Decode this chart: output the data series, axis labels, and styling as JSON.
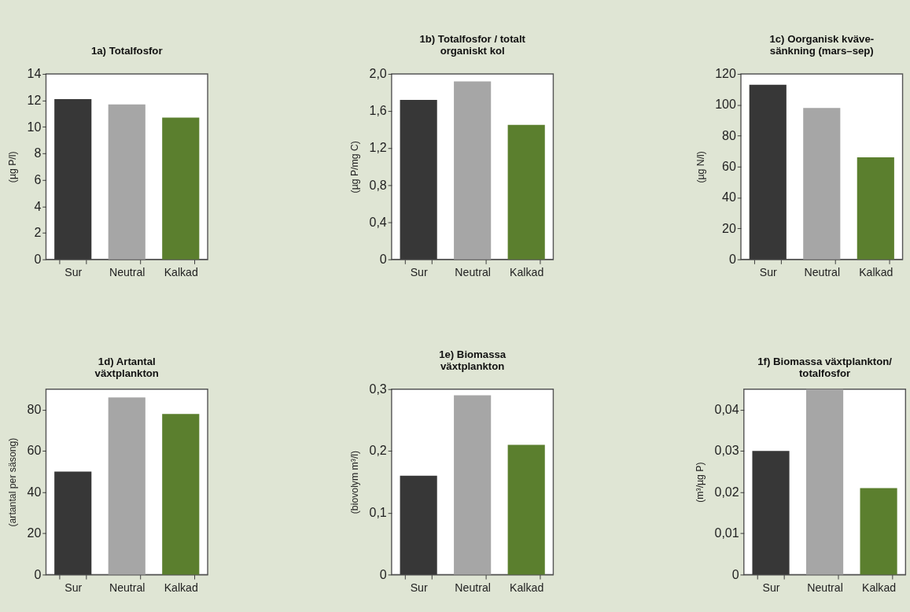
{
  "chart_data": [
    {
      "type": "bar",
      "title": "1a) Totalfosfor",
      "ylabel": "(µg P/l)",
      "categories": [
        "Sur",
        "Neutral",
        "Kalkad"
      ],
      "values": [
        12.1,
        11.7,
        10.7
      ],
      "colors": [
        "#373737",
        "#a6a6a6",
        "#5b7f2e"
      ],
      "ylim": [
        0,
        14
      ],
      "yticks": [
        0,
        2,
        4,
        6,
        8,
        10,
        12,
        14
      ],
      "grid": false
    },
    {
      "type": "bar",
      "title": "1b) Totalfosfor / totalt\norganiskt kol",
      "ylabel": "(µg P/mg C)",
      "categories": [
        "Sur",
        "Neutral",
        "Kalkad"
      ],
      "values": [
        1.72,
        1.92,
        1.45
      ],
      "colors": [
        "#373737",
        "#a6a6a6",
        "#5b7f2e"
      ],
      "ylim": [
        0,
        2.0
      ],
      "yticks": [
        0,
        {
          "value": 0.4,
          "label": "0,4"
        },
        {
          "value": 0.8,
          "label": "0,8"
        },
        {
          "value": 1.2,
          "label": "1,2"
        },
        {
          "value": 1.6,
          "label": "1,6"
        },
        {
          "value": 2.0,
          "label": "2,0"
        }
      ],
      "grid": false
    },
    {
      "type": "bar",
      "title": "1c) Oorganisk kväve-\nsänkning (mars–sep)",
      "ylabel": "(µg N/l)",
      "categories": [
        "Sur",
        "Neutral",
        "Kalkad"
      ],
      "values": [
        113,
        98,
        66
      ],
      "colors": [
        "#373737",
        "#a6a6a6",
        "#5b7f2e"
      ],
      "ylim": [
        0,
        120
      ],
      "yticks": [
        0,
        20,
        40,
        60,
        80,
        100,
        120
      ],
      "grid": false
    },
    {
      "type": "bar",
      "title": "1d) Artantal\nväxtplankton",
      "ylabel": "(artantal per säsong)",
      "categories": [
        "Sur",
        "Neutral",
        "Kalkad"
      ],
      "values": [
        50,
        86,
        78
      ],
      "colors": [
        "#373737",
        "#a6a6a6",
        "#5b7f2e"
      ],
      "ylim": [
        0,
        90
      ],
      "yticks": [
        0,
        20,
        40,
        60,
        80
      ],
      "grid": false
    },
    {
      "type": "bar",
      "title": "1e) Biomassa\nväxtplankton",
      "ylabel": "(biovolym m³/l)",
      "categories": [
        "Sur",
        "Neutral",
        "Kalkad"
      ],
      "values": [
        0.16,
        0.29,
        0.21
      ],
      "colors": [
        "#373737",
        "#a6a6a6",
        "#5b7f2e"
      ],
      "ylim": [
        0,
        0.3
      ],
      "yticks": [
        0,
        {
          "value": 0.1,
          "label": "0,1"
        },
        {
          "value": 0.2,
          "label": "0,2"
        },
        {
          "value": 0.3,
          "label": "0,3"
        }
      ],
      "grid": false
    },
    {
      "type": "bar",
      "title": "1f) Biomassa växtplankton/\ntotalfosfor",
      "ylabel": "(m³/µg P)",
      "categories": [
        "Sur",
        "Neutral",
        "Kalkad"
      ],
      "values": [
        0.03,
        0.045,
        0.021
      ],
      "colors": [
        "#373737",
        "#a6a6a6",
        "#5b7f2e"
      ],
      "ylim": [
        0,
        0.045
      ],
      "yticks": [
        0,
        {
          "value": 0.01,
          "label": "0,01"
        },
        {
          "value": 0.02,
          "label": "0,02"
        },
        {
          "value": 0.03,
          "label": "0,03"
        },
        {
          "value": 0.04,
          "label": "0,04"
        }
      ],
      "grid": false
    }
  ]
}
